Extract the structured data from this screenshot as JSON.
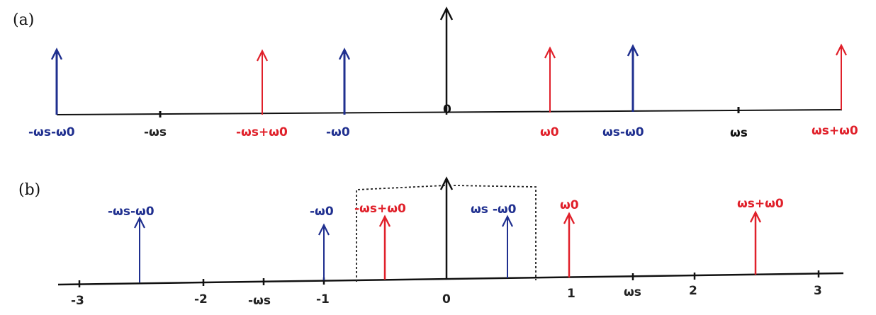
{
  "colors": {
    "blue": "#1f2f8f",
    "red": "#e0202a",
    "black": "#111111"
  },
  "panel_a": {
    "label": "(a)",
    "origin_label": "0",
    "impulses": [
      {
        "id": "a-neg-ws-neg-w0",
        "text": "-ωs-ω0",
        "color": "blue"
      },
      {
        "id": "a-neg-ws-pos-w0",
        "text": "-ωs+ω0",
        "color": "red"
      },
      {
        "id": "a-neg-w0",
        "text": "-ω0",
        "color": "blue"
      },
      {
        "id": "a-center",
        "text": "",
        "color": "black"
      },
      {
        "id": "a-w0",
        "text": "ω0",
        "color": "red"
      },
      {
        "id": "a-ws-neg-w0",
        "text": "ωs-ω0",
        "color": "blue"
      },
      {
        "id": "a-ws-pos-w0",
        "text": "ωs+ω0",
        "color": "red"
      }
    ],
    "ticks": [
      {
        "id": "a-tick-neg-ws",
        "text": "-ωs"
      },
      {
        "id": "a-tick-ws",
        "text": "ωs"
      }
    ]
  },
  "panel_b": {
    "label": "(b)",
    "ticks": [
      "-3",
      "-2",
      "-ωs",
      "-1",
      "0",
      "1",
      "ωs",
      "2",
      "3"
    ],
    "impulses": [
      {
        "id": "b-neg-ws-neg-w0",
        "text": "-ωs-ω0",
        "color": "blue"
      },
      {
        "id": "b-neg-w0",
        "text": "-ω0",
        "color": "blue"
      },
      {
        "id": "b-neg-ws-pos-w0",
        "text": "-ωs+ω0",
        "color": "red"
      },
      {
        "id": "b-center",
        "text": "",
        "color": "black"
      },
      {
        "id": "b-ws-neg-w0",
        "text": "ωs -ω0",
        "color": "blue"
      },
      {
        "id": "b-w0",
        "text": "ω0",
        "color": "red"
      },
      {
        "id": "b-ws-pos-w0",
        "text": "ωs+ω0",
        "color": "red"
      }
    ]
  }
}
